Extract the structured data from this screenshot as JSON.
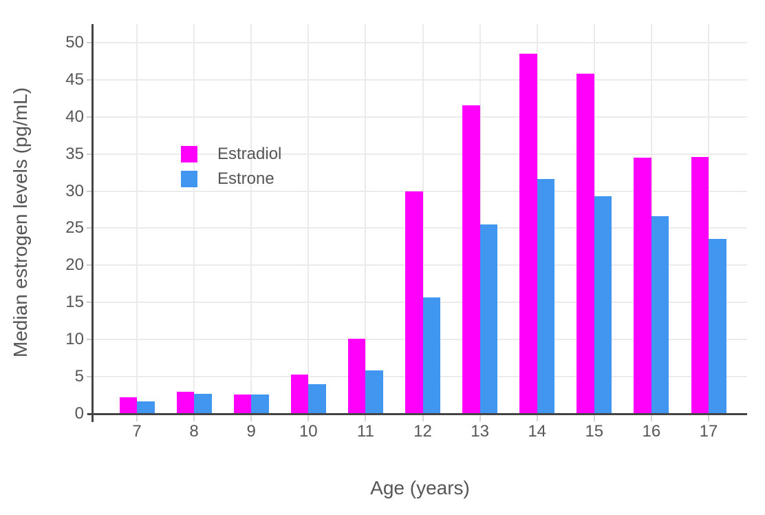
{
  "chart_data": {
    "type": "bar",
    "title": "",
    "xlabel": "Age (years)",
    "ylabel": "Median estrogen levels (pg/mL)",
    "categories": [
      "7",
      "8",
      "9",
      "10",
      "11",
      "12",
      "13",
      "14",
      "15",
      "16",
      "17"
    ],
    "series": [
      {
        "name": "Estradiol",
        "color": "#ff00fa",
        "values": [
          2.2,
          3.0,
          2.6,
          5.3,
          10.1,
          30.0,
          41.6,
          48.5,
          45.8,
          34.5,
          34.6
        ]
      },
      {
        "name": "Estrone",
        "color": "#4196f0",
        "values": [
          1.7,
          2.7,
          2.6,
          4.0,
          5.8,
          15.7,
          25.5,
          31.6,
          29.3,
          26.6,
          23.6
        ]
      }
    ],
    "yticks": [
      0,
      5,
      10,
      15,
      20,
      25,
      30,
      35,
      40,
      45,
      50
    ],
    "ylim": [
      0,
      52.5
    ],
    "grid": true,
    "gridline_color": "#ebebeb",
    "axis_line_color": "#444444",
    "text_color": "#565656",
    "legend_position": "inside-top-left"
  }
}
